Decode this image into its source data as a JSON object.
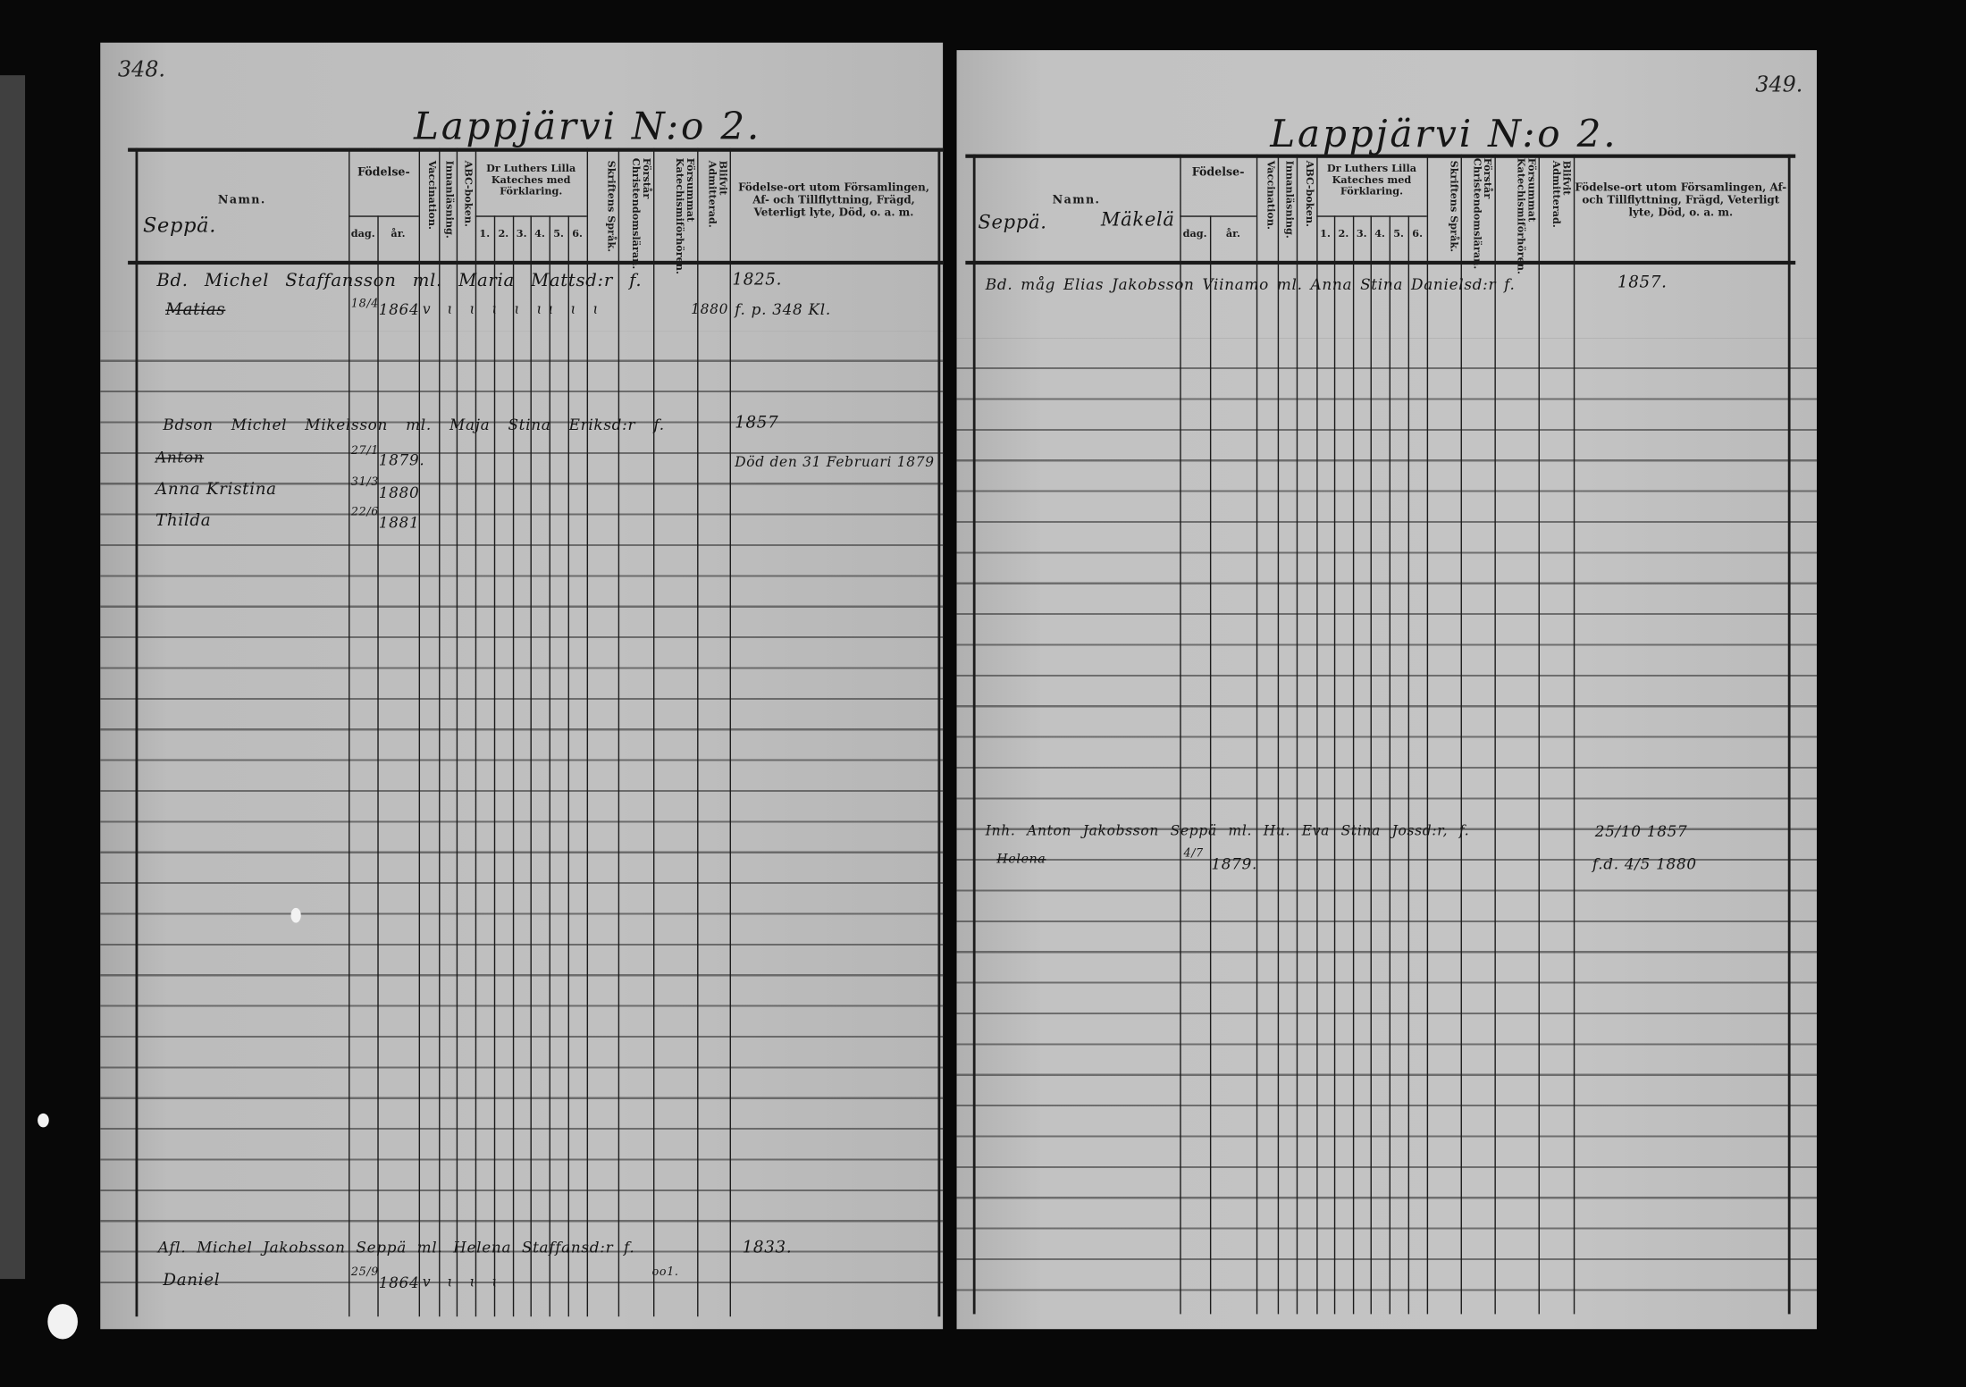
{
  "headers": {
    "namn": "Namn.",
    "fodelse": "Födelse-",
    "dag": "dag.",
    "ar": "år.",
    "vaccination": "Vaccination.",
    "innanlasning": "Innanläsning.",
    "abc": "ABC-boken.",
    "katekes": "Dr Luthers Lilla Kateches med Förklaring.",
    "nums": [
      "1.",
      "2.",
      "3.",
      "4.",
      "5.",
      "6."
    ],
    "skriftens": "Skriftens Språk.",
    "forstar": "Förstår Christendomsläran.",
    "forsummat": "Försummat Katechismiförhören.",
    "blifvit": "Blifvit Admitterad.",
    "fodelseort": "Födelse-ort utom Församlingen, Af- och Tillflyttning, Frägd, Veterligt lyte, Död, o. a. m."
  },
  "left_page": {
    "page_number": "348.",
    "title": "Lappjärvi N:o 2.",
    "village": "Seppä.",
    "family1": {
      "head": "Bd. Michel Staffansson ml. Maria Mattsd:r f.",
      "head_year": "1825.",
      "child": "Matias",
      "child_day": "18/4",
      "child_year": "1864",
      "child_marks": "v ɩ ɩ ɩ ɩ ɩɩ ɩ ɩ",
      "child_admitted": "1880",
      "child_note": "f. p. 348 Kl."
    },
    "family2": {
      "head": "Bdson Michel Mikelsson ml. Maja Stina Eriksd:r f.",
      "head_year": "1857",
      "children": [
        {
          "name": "Anton",
          "day": "27/1",
          "year": "1879.",
          "note": "Död den 31 Februari 1879",
          "struck": true
        },
        {
          "name": "Anna Kristina",
          "day": "31/3",
          "year": "1880"
        },
        {
          "name": "Thilda",
          "day": "22/6",
          "year": "1881"
        }
      ]
    },
    "family3": {
      "head": "Afl. Michel Jakobsson Seppä ml. Helena Staffansd:r f.",
      "head_year": "1833.",
      "sub_note": "oo1.",
      "child": "Daniel",
      "child_day": "25/9",
      "child_year": "1864",
      "child_marks": "v ɩ ɩ ɩ"
    }
  },
  "right_page": {
    "page_number": "349.",
    "title": "Lappjärvi N:o 2.",
    "village": "Seppä.",
    "farm": "Mäkelä",
    "family1": {
      "head": "Bd. måg Elias Jakobsson Viinamo ml. Anna Stina Danielsd:r f.",
      "head_year": "1857."
    },
    "family2": {
      "head": "Inh. Anton Jakobsson Seppä ml. Hu. Eva Stina Jossd:r, f.",
      "head_year": "25/10 1857",
      "child": "Helena",
      "child_day": "4/7",
      "child_year": "1879.",
      "child_note": "f.d. 4/5 1880"
    }
  },
  "colors": {
    "paper": "#bfbfbf",
    "ink": "#161616",
    "background": "#070707"
  }
}
